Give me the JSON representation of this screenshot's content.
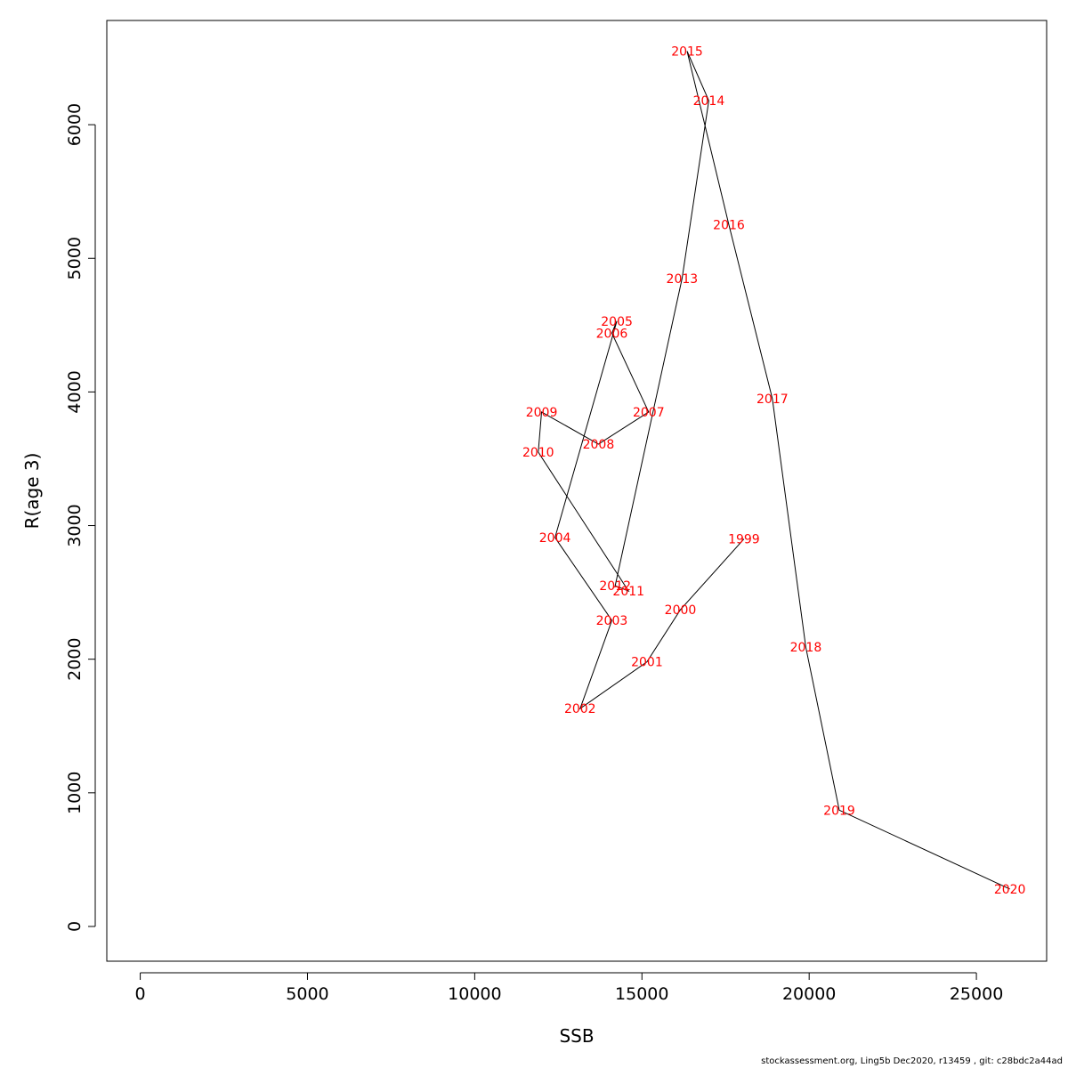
{
  "chart_data": {
    "type": "line",
    "xlabel": "SSB",
    "ylabel": "R(age 3)",
    "xlim": [
      -1000,
      27100
    ],
    "ylim": [
      -260,
      6780
    ],
    "x_ticks": [
      0,
      5000,
      10000,
      15000,
      20000,
      25000
    ],
    "y_ticks": [
      0,
      1000,
      2000,
      3000,
      4000,
      5000,
      6000
    ],
    "grid": false,
    "label_color": "#ff0000",
    "line_color": "#000000",
    "points": [
      {
        "label": "1999",
        "x": 18050,
        "y": 2900
      },
      {
        "label": "2000",
        "x": 16150,
        "y": 2370
      },
      {
        "label": "2001",
        "x": 15150,
        "y": 1980
      },
      {
        "label": "2002",
        "x": 13150,
        "y": 1630
      },
      {
        "label": "2003",
        "x": 14100,
        "y": 2290
      },
      {
        "label": "2004",
        "x": 12400,
        "y": 2910
      },
      {
        "label": "2005",
        "x": 14250,
        "y": 4530
      },
      {
        "label": "2006",
        "x": 14100,
        "y": 4440
      },
      {
        "label": "2007",
        "x": 15200,
        "y": 3850
      },
      {
        "label": "2008",
        "x": 13700,
        "y": 3610
      },
      {
        "label": "2009",
        "x": 12000,
        "y": 3850
      },
      {
        "label": "2010",
        "x": 11900,
        "y": 3550
      },
      {
        "label": "2011",
        "x": 14600,
        "y": 2510
      },
      {
        "label": "2012",
        "x": 14200,
        "y": 2550
      },
      {
        "label": "2013",
        "x": 16200,
        "y": 4850
      },
      {
        "label": "2014",
        "x": 17000,
        "y": 6180
      },
      {
        "label": "2015",
        "x": 16350,
        "y": 6550
      },
      {
        "label": "2016",
        "x": 17600,
        "y": 5250
      },
      {
        "label": "2017",
        "x": 18900,
        "y": 3950
      },
      {
        "label": "2018",
        "x": 19900,
        "y": 2090
      },
      {
        "label": "2019",
        "x": 20900,
        "y": 870
      },
      {
        "label": "2020",
        "x": 26000,
        "y": 280
      }
    ]
  },
  "footer": {
    "text": "stockassessment.org, Ling5b  Dec2020, r13459 , git: c28bdc2a44ad"
  }
}
